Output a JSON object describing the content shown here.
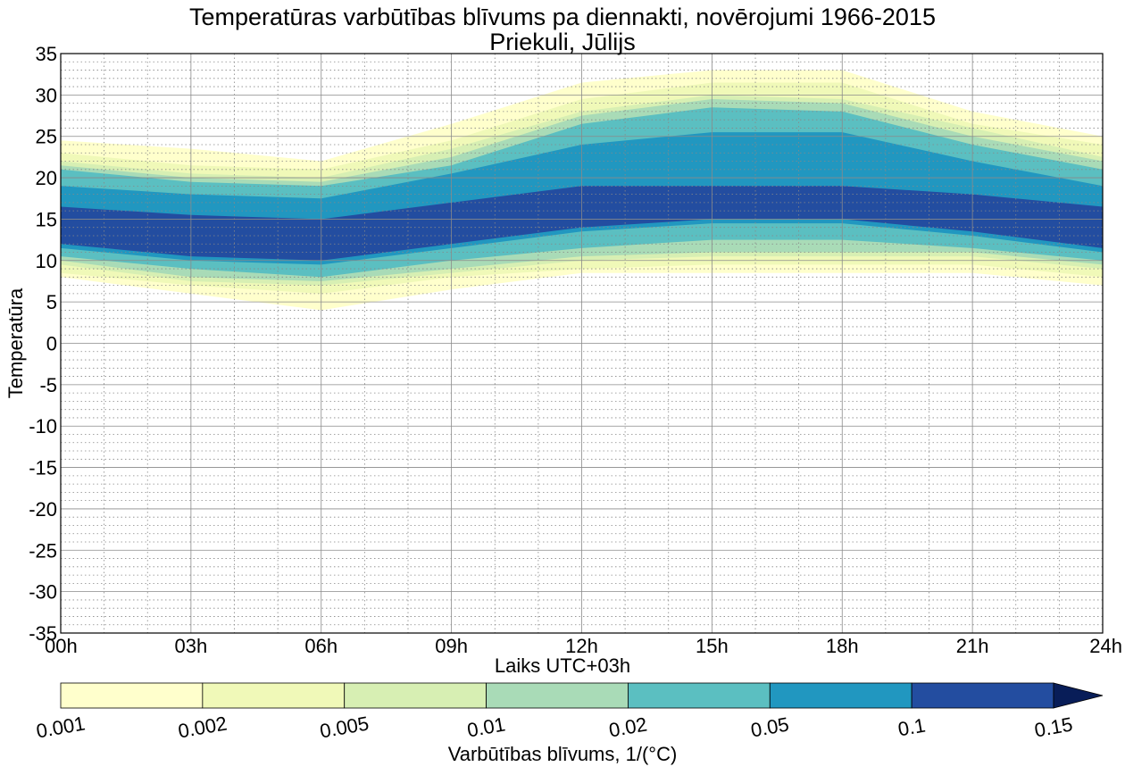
{
  "chart_data": {
    "type": "contourf",
    "title": "Temperatūras varbūtības blīvums pa diennakti, novērojumi 1966-2015",
    "subtitle": "Priekuli, Jūlijs",
    "xlabel": "Laiks UTC+03h",
    "ylabel": "Temperatūra",
    "x_ticks": [
      "00h",
      "03h",
      "06h",
      "09h",
      "12h",
      "15h",
      "18h",
      "21h",
      "24h"
    ],
    "y_ticks": [
      "35",
      "30",
      "25",
      "20",
      "15",
      "10",
      "5",
      "0",
      "-5",
      "-10",
      "-15",
      "-20",
      "-25",
      "-30",
      "-35"
    ],
    "xlim": [
      0,
      24
    ],
    "ylim": [
      -35,
      35
    ],
    "grid": "major solid, minor dotted",
    "hours": [
      0,
      3,
      6,
      9,
      12,
      15,
      18,
      21,
      24
    ],
    "levels": [
      0.001,
      0.002,
      0.005,
      0.01,
      0.02,
      0.05,
      0.1,
      0.15
    ],
    "level_labels": [
      "0.001",
      "0.002",
      "0.005",
      "0.01",
      "0.02",
      "0.05",
      "0.1",
      "0.15"
    ],
    "colors": [
      "#ffffcc",
      "#f0f9b8",
      "#d7efb3",
      "#a9dbb7",
      "#5bbfc1",
      "#2197c0",
      "#234da0",
      "#081d58"
    ],
    "contour_bands": [
      {
        "level": 0.001,
        "upper": [
          24.5,
          23.5,
          22,
          26.5,
          31.5,
          33,
          33,
          28,
          25
        ],
        "lower": [
          8,
          6,
          4,
          6.5,
          8.5,
          8.5,
          8.5,
          8.5,
          7
        ]
      },
      {
        "level": 0.002,
        "upper": [
          23,
          21.5,
          21,
          24.5,
          29.5,
          31.5,
          31.5,
          26.5,
          24
        ],
        "lower": [
          8.5,
          7,
          6,
          8,
          9,
          9.5,
          9.5,
          9.5,
          8
        ]
      },
      {
        "level": 0.005,
        "upper": [
          22,
          20.5,
          20,
          23.5,
          28,
          30,
          29.5,
          26,
          22.5
        ],
        "lower": [
          9.5,
          7.5,
          7,
          8.5,
          10,
          10.5,
          10.5,
          10.5,
          9
        ]
      },
      {
        "level": 0.01,
        "upper": [
          21.5,
          20,
          19.5,
          22.5,
          27.5,
          29.5,
          29,
          25,
          22
        ],
        "lower": [
          10,
          8,
          7.5,
          9,
          10.5,
          11,
          11,
          11,
          9.5
        ]
      },
      {
        "level": 0.02,
        "upper": [
          21,
          19.5,
          19,
          21.5,
          26.5,
          28.5,
          28,
          24,
          21
        ],
        "lower": [
          10.5,
          9,
          8,
          10,
          11.5,
          12.5,
          12.5,
          11.5,
          10
        ]
      },
      {
        "level": 0.05,
        "upper": [
          19,
          18,
          17.5,
          20.5,
          24,
          25.5,
          25.5,
          22,
          19
        ],
        "lower": [
          11.5,
          10,
          9.5,
          11.5,
          13.5,
          14.5,
          14.5,
          13,
          11
        ]
      },
      {
        "level": 0.1,
        "upper": [
          16.5,
          15.5,
          15,
          17,
          19,
          19,
          19,
          18,
          16.5
        ],
        "lower": [
          12,
          10.5,
          10,
          12,
          14,
          15,
          15,
          13.5,
          11.5
        ]
      }
    ],
    "colorbar_label": "Varbūtības blīvums, 1/(°C)",
    "colorbar_extend": "max"
  }
}
